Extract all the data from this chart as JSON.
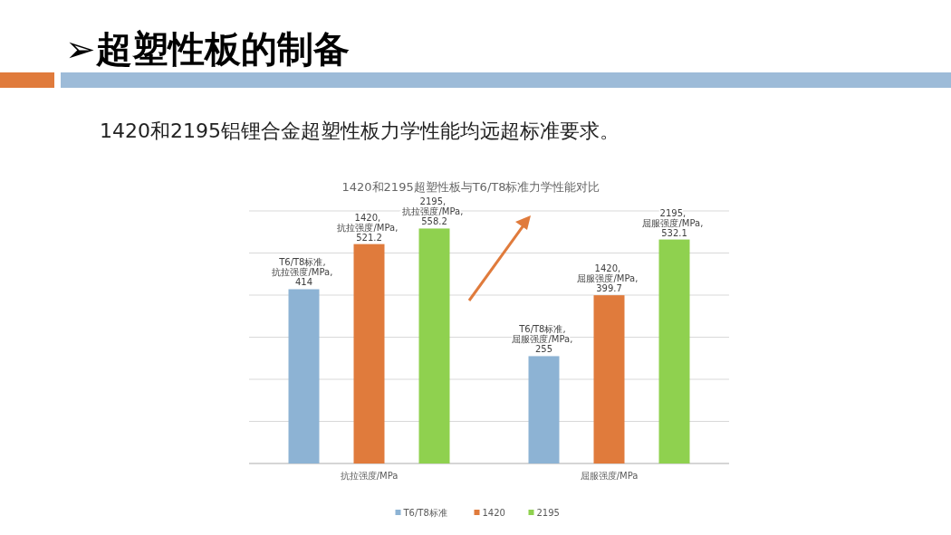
{
  "chart_data": {
    "type": "bar",
    "title": "➢超塑性板的制备",
    "subtitle": "1420和2195超塑性板与T6/T8标准力学性能对比",
    "annotations": [
      "1420和2195铝锂合金超塑性板力学性能均远超标准要求。"
    ],
    "categories": [
      "抗拉强度/MPa",
      "屈服强度/MPa"
    ],
    "series": [
      {
        "name": "T6/T8标准",
        "color": "#8db3d4",
        "values": [
          414,
          255
        ],
        "value_labels": [
          "T6/T8标准, 抗拉强度/MPa, 414",
          "T6/T8标准, 屈服强度/MPa, 255"
        ]
      },
      {
        "name": "1420",
        "color": "#e07b3c",
        "values": [
          521.2,
          399.7
        ],
        "value_labels": [
          "1420, 抗拉强度/MPa, 521.2",
          "1420, 屈服强度/MPa, 399.7"
        ]
      },
      {
        "name": "2195",
        "color": "#8fd14f",
        "values": [
          558.2,
          532.1
        ],
        "value_labels": [
          "2195, 抗拉强度/MPa, 558.2",
          "2195, 屈服强度/MPa, 532.1"
        ]
      }
    ],
    "ylim": [
      0,
      600
    ],
    "yticks": [
      {
        "value": 0,
        "label": null
      },
      {
        "value": 100,
        "label": null
      },
      {
        "value": 200,
        "label": null
      },
      {
        "value": 300,
        "label": null
      },
      {
        "value": 400,
        "label": null
      },
      {
        "value": 500,
        "label": null
      },
      {
        "value": 600,
        "label": null
      }
    ],
    "tick_labels": "x",
    "grid": "y",
    "legend": "bottom"
  }
}
